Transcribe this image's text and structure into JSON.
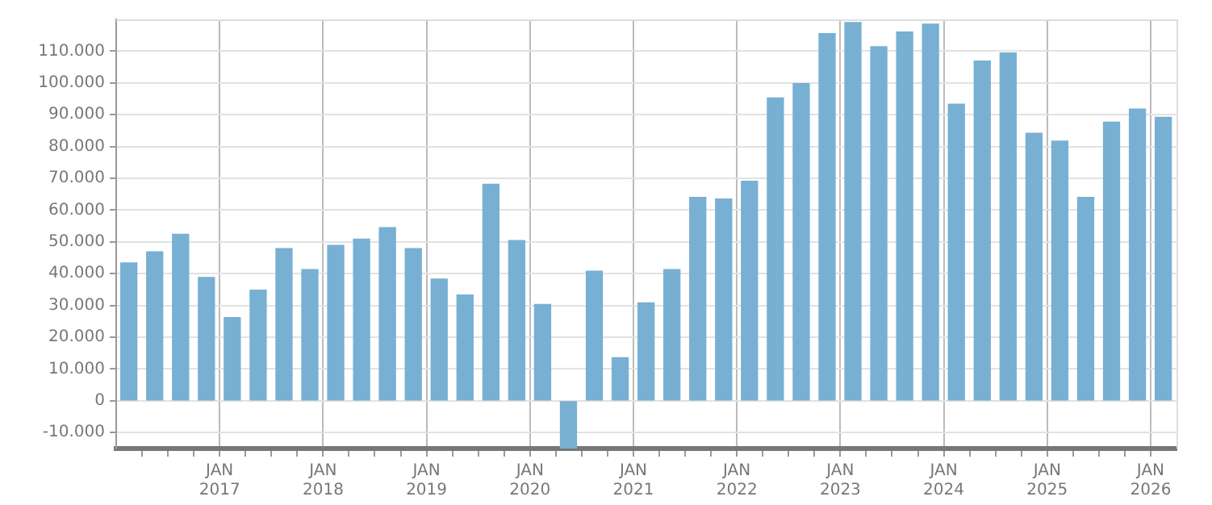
{
  "chart_data": {
    "type": "bar",
    "color": "#78b0d3",
    "grid": true,
    "x": [
      "2016-02-15",
      "2016-05-15",
      "2016-08-15",
      "2016-11-15",
      "2017-02-15",
      "2017-05-15",
      "2017-08-15",
      "2017-11-15",
      "2018-02-15",
      "2018-05-15",
      "2018-08-15",
      "2018-11-15",
      "2019-02-15",
      "2019-05-15",
      "2019-08-15",
      "2019-11-15",
      "2020-02-15",
      "2020-05-15",
      "2020-08-15",
      "2020-11-15",
      "2021-02-15",
      "2021-05-15",
      "2021-08-15",
      "2021-11-15",
      "2022-02-15",
      "2022-05-15",
      "2022-08-15",
      "2022-11-15",
      "2023-02-15",
      "2023-05-15",
      "2023-08-15",
      "2023-11-15",
      "2024-02-15",
      "2024-05-15",
      "2024-08-15",
      "2024-11-15",
      "2025-02-15",
      "2025-05-15",
      "2025-08-15",
      "2025-11-15",
      "2026-02-15"
    ],
    "values": [
      43400,
      46900,
      52400,
      38800,
      26200,
      34800,
      47900,
      41300,
      48900,
      50900,
      54500,
      47900,
      38300,
      33300,
      68100,
      50400,
      30300,
      -15000,
      40800,
      13600,
      30800,
      41300,
      64000,
      63500,
      69100,
      95300,
      99800,
      115500,
      119000,
      111400,
      116000,
      118500,
      93300,
      106900,
      109400,
      84200,
      81700,
      64000,
      87700,
      91800,
      89200
    ],
    "xlim": [
      "2016-01-01",
      "2026-04-01"
    ],
    "xticks": [
      {
        "value": "2016-04-01",
        "label": null
      },
      {
        "value": "2016-07-01",
        "label": null
      },
      {
        "value": "2016-10-01",
        "label": null
      },
      {
        "value": "2017-01-01",
        "label": "JAN\n2017"
      },
      {
        "value": "2017-04-01",
        "label": null
      },
      {
        "value": "2017-07-01",
        "label": null
      },
      {
        "value": "2017-10-01",
        "label": null
      },
      {
        "value": "2018-01-01",
        "label": "JAN\n2018"
      },
      {
        "value": "2018-04-01",
        "label": null
      },
      {
        "value": "2018-07-01",
        "label": null
      },
      {
        "value": "2018-10-01",
        "label": null
      },
      {
        "value": "2019-01-01",
        "label": "JAN\n2019"
      },
      {
        "value": "2019-04-01",
        "label": null
      },
      {
        "value": "2019-07-01",
        "label": null
      },
      {
        "value": "2019-10-01",
        "label": null
      },
      {
        "value": "2020-01-01",
        "label": "JAN\n2020"
      },
      {
        "value": "2020-04-01",
        "label": null
      },
      {
        "value": "2020-07-01",
        "label": null
      },
      {
        "value": "2020-10-01",
        "label": null
      },
      {
        "value": "2021-01-01",
        "label": "JAN\n2021"
      },
      {
        "value": "2021-04-01",
        "label": null
      },
      {
        "value": "2021-07-01",
        "label": null
      },
      {
        "value": "2021-10-01",
        "label": null
      },
      {
        "value": "2022-01-01",
        "label": "JAN\n2022"
      },
      {
        "value": "2022-04-01",
        "label": null
      },
      {
        "value": "2022-07-01",
        "label": null
      },
      {
        "value": "2022-10-01",
        "label": null
      },
      {
        "value": "2023-01-01",
        "label": "JAN\n2023"
      },
      {
        "value": "2023-04-01",
        "label": null
      },
      {
        "value": "2023-07-01",
        "label": null
      },
      {
        "value": "2023-10-01",
        "label": null
      },
      {
        "value": "2024-01-01",
        "label": "JAN\n2024"
      },
      {
        "value": "2024-04-01",
        "label": null
      },
      {
        "value": "2024-07-01",
        "label": null
      },
      {
        "value": "2024-10-01",
        "label": null
      },
      {
        "value": "2025-01-01",
        "label": "JAN\n2025"
      },
      {
        "value": "2025-04-01",
        "label": null
      },
      {
        "value": "2025-07-01",
        "label": null
      },
      {
        "value": "2025-10-01",
        "label": null
      },
      {
        "value": "2026-01-01",
        "label": "JAN\n2026"
      }
    ],
    "ylim": [
      -15000,
      120000
    ],
    "yticks": [
      {
        "value": -10000,
        "label": "-10.000"
      },
      {
        "value": 0,
        "label": "0"
      },
      {
        "value": 10000,
        "label": "10.000"
      },
      {
        "value": 20000,
        "label": "20.000"
      },
      {
        "value": 30000,
        "label": "30.000"
      },
      {
        "value": 40000,
        "label": "40.000"
      },
      {
        "value": 50000,
        "label": "50.000"
      },
      {
        "value": 60000,
        "label": "60.000"
      },
      {
        "value": 70000,
        "label": "70.000"
      },
      {
        "value": 80000,
        "label": "80.000"
      },
      {
        "value": 90000,
        "label": "90.000"
      },
      {
        "value": 100000,
        "label": "100.000"
      },
      {
        "value": 110000,
        "label": "110.000"
      }
    ]
  }
}
